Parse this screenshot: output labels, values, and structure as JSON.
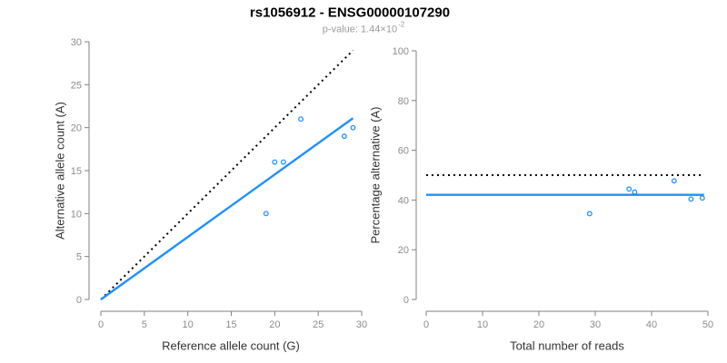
{
  "header": {
    "title": "rs1056912 - ENSG00000107290",
    "p_value_label": "p-value: ",
    "p_value_mantissa": "1.44",
    "p_value_times": "×10",
    "p_value_exponent": "-2"
  },
  "colors": {
    "accent_blue": "#1e90ff",
    "dotted_black": "#000000",
    "axis_gray": "#808080",
    "tick_text_gray": "#8c8c8c",
    "label_dark": "#333333",
    "subtitle_gray": "#9b9b9b"
  },
  "chart_data": [
    {
      "id": "allele-count-scatter",
      "type": "scatter",
      "xlabel": "Reference allele count (G)",
      "ylabel": "Alternative allele count (A)",
      "xlim": [
        0,
        30
      ],
      "ylim": [
        0,
        30
      ],
      "xticks": [
        0,
        5,
        10,
        15,
        20,
        25,
        30
      ],
      "yticks": [
        0,
        5,
        10,
        15,
        20,
        25,
        30
      ],
      "grid": false,
      "legend": null,
      "points": [
        [
          19,
          10
        ],
        [
          20,
          16
        ],
        [
          21,
          16
        ],
        [
          23,
          21
        ],
        [
          28,
          19
        ],
        [
          29,
          20
        ]
      ],
      "lines": [
        {
          "name": "identity-line",
          "style": "dotted",
          "color": "#000000",
          "x1": 0,
          "y1": 0,
          "x2": 29,
          "y2": 29
        },
        {
          "name": "fit-line",
          "style": "solid",
          "color": "#1e90ff",
          "x1": 0,
          "y1": 0,
          "x2": 29,
          "y2": 21.1
        }
      ]
    },
    {
      "id": "percentage-reads-scatter",
      "type": "scatter",
      "xlabel": "Total number of reads",
      "ylabel": "Percentage alternative (A)",
      "xlim": [
        0,
        50
      ],
      "ylim": [
        0,
        100
      ],
      "xticks": [
        0,
        10,
        20,
        30,
        40,
        50
      ],
      "yticks": [
        0,
        20,
        40,
        60,
        80,
        100
      ],
      "grid": false,
      "legend": null,
      "points": [
        [
          29,
          34.5
        ],
        [
          36,
          44.4
        ],
        [
          37,
          43.2
        ],
        [
          44,
          47.7
        ],
        [
          47,
          40.4
        ],
        [
          49,
          40.8
        ]
      ],
      "lines": [
        {
          "name": "fifty-percent-line",
          "style": "dotted",
          "color": "#000000",
          "x1": 0,
          "y1": 50,
          "x2": 49.3,
          "y2": 50
        },
        {
          "name": "mean-percentage-line",
          "style": "solid",
          "color": "#1e90ff",
          "x1": 0,
          "y1": 42.1,
          "x2": 49.3,
          "y2": 42.1
        }
      ]
    }
  ]
}
